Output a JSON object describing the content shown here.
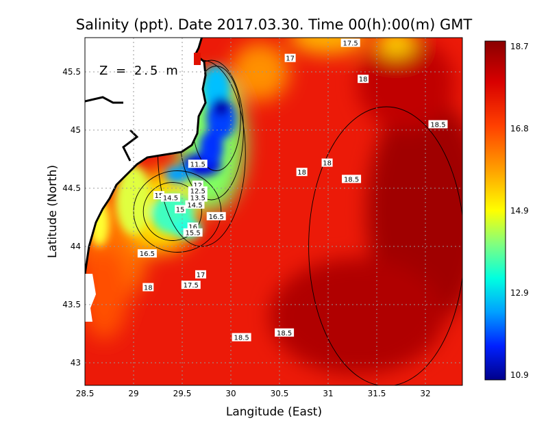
{
  "chart_data": {
    "type": "heatmap",
    "title": "Salinity (ppt). Date 2017.03.30. Time 00(h):00(m) GMT",
    "annotation": "Z = 2.5 m",
    "xlabel": "Langitude (East)",
    "ylabel": "Latitude (North)",
    "xlim": [
      28.5,
      32.38
    ],
    "ylim": [
      42.8,
      45.79
    ],
    "xticks": [
      "28.5",
      "29",
      "29.5",
      "30",
      "30.5",
      "31",
      "31.5",
      "32"
    ],
    "yticks": [
      "43",
      "43.5",
      "44",
      "44.5",
      "45",
      "45.5"
    ],
    "grid": true,
    "colorbar": {
      "min": 10.9,
      "max": 18.7,
      "ticks": [
        "18.7",
        "16.8",
        "14.9",
        "12.9",
        "10.9"
      ],
      "placement": "right"
    },
    "contour_labels": [
      {
        "text": "17.5",
        "lon": 31.23,
        "lat": 45.75
      },
      {
        "text": "17",
        "lon": 30.61,
        "lat": 45.62
      },
      {
        "text": "18",
        "lon": 31.36,
        "lat": 45.44
      },
      {
        "text": "18.5",
        "lon": 32.13,
        "lat": 45.05
      },
      {
        "text": "18",
        "lon": 30.99,
        "lat": 44.72
      },
      {
        "text": "18",
        "lon": 30.73,
        "lat": 44.64
      },
      {
        "text": "18.5",
        "lon": 31.24,
        "lat": 44.58
      },
      {
        "text": "11.5",
        "lon": 29.66,
        "lat": 44.71
      },
      {
        "text": "12",
        "lon": 29.66,
        "lat": 44.53
      },
      {
        "text": "12.5",
        "lon": 29.66,
        "lat": 44.48
      },
      {
        "text": "13.5",
        "lon": 29.66,
        "lat": 44.42
      },
      {
        "text": "14.5",
        "lon": 29.63,
        "lat": 44.36
      },
      {
        "text": "15",
        "lon": 29.26,
        "lat": 44.44
      },
      {
        "text": "14.5",
        "lon": 29.38,
        "lat": 44.42
      },
      {
        "text": "15",
        "lon": 29.48,
        "lat": 44.32
      },
      {
        "text": "16.5",
        "lon": 29.85,
        "lat": 44.26
      },
      {
        "text": "16",
        "lon": 29.61,
        "lat": 44.17
      },
      {
        "text": "15.5",
        "lon": 29.61,
        "lat": 44.12
      },
      {
        "text": "16.5",
        "lon": 29.14,
        "lat": 43.94
      },
      {
        "text": "17",
        "lon": 29.69,
        "lat": 43.76
      },
      {
        "text": "17.5",
        "lon": 29.59,
        "lat": 43.67
      },
      {
        "text": "18",
        "lon": 29.15,
        "lat": 43.65
      },
      {
        "text": "18.5",
        "lon": 30.11,
        "lat": 43.22
      },
      {
        "text": "18.5",
        "lon": 30.55,
        "lat": 43.26
      }
    ]
  }
}
